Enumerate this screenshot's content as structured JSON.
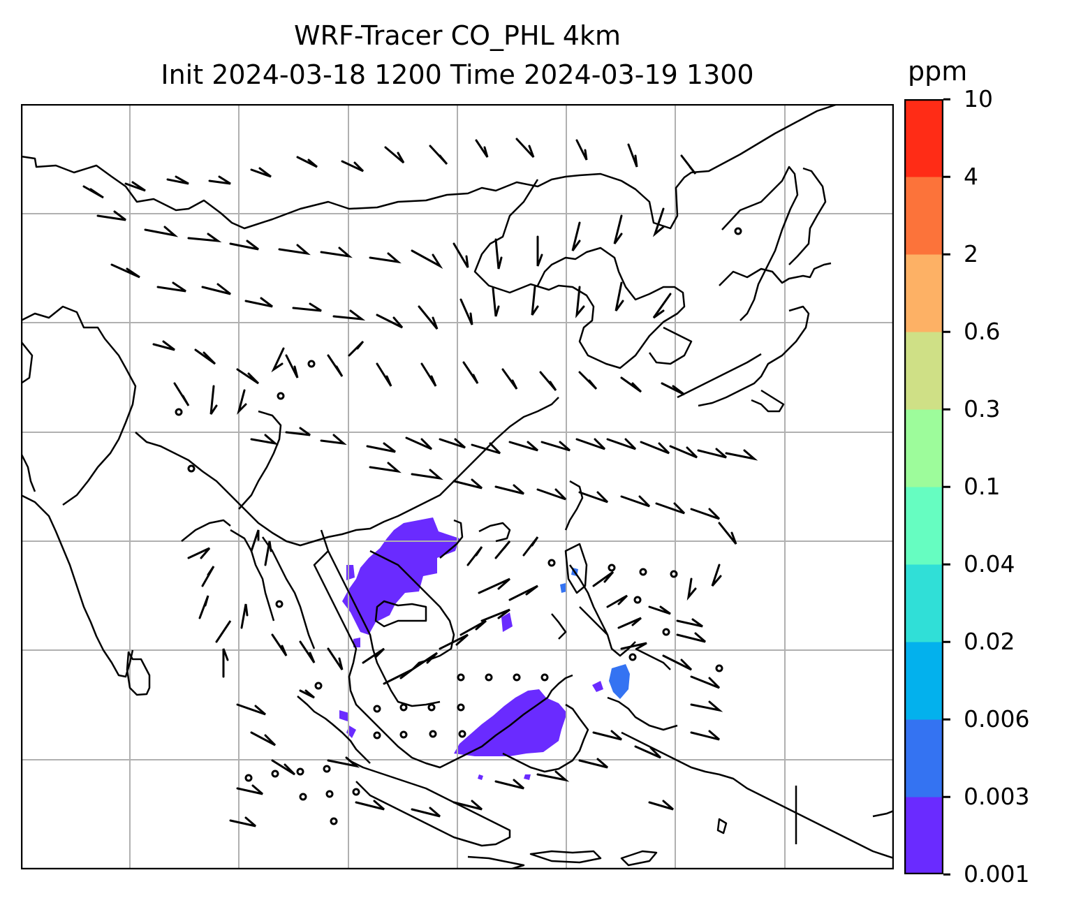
{
  "title": {
    "line1": "WRF-Tracer CO_PHL 4km",
    "line2": "Init 2024-03-18 1200 Time 2024-03-19 1300"
  },
  "colorbar": {
    "units": "ppm",
    "levels": [
      "0.001",
      "0.003",
      "0.006",
      "0.02",
      "0.04",
      "0.1",
      "0.3",
      "0.6",
      "2",
      "4",
      "10"
    ],
    "colors": [
      "#6a2bff",
      "#3473f2",
      "#03b1ed",
      "#30dfd7",
      "#66fdc1",
      "#9dfc9b",
      "#cfe086",
      "#fdb165",
      "#fc733a",
      "#ff2c16"
    ]
  },
  "map": {
    "gridlines": true,
    "grid_color": "#b0b0b0",
    "coastline_color": "#000000",
    "plume_color": "#6a2bff",
    "plume_color_secondary": "#3473f2"
  }
}
